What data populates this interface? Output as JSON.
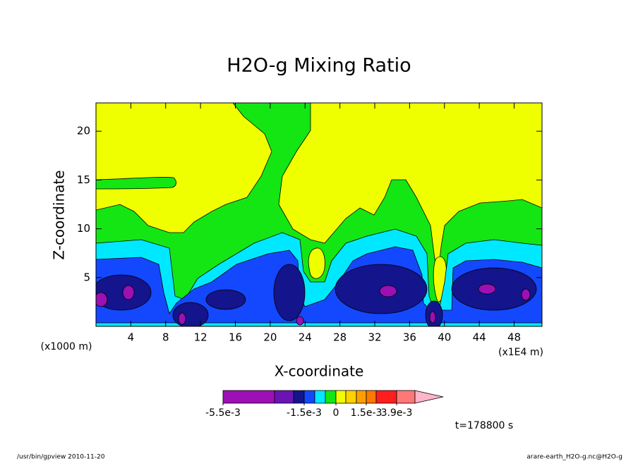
{
  "chart_data": {
    "type": "contour",
    "title": "H2O-g Mixing Ratio",
    "x_label": "X-coordinate",
    "y_label": "Z-coordinate",
    "x_unit": "(x1E4 m)",
    "y_unit": "(x1000 m)",
    "xlim": [
      0,
      51.2
    ],
    "ylim": [
      0,
      22.9
    ],
    "xticks": [
      4,
      8,
      12,
      16,
      20,
      24,
      28,
      32,
      36,
      40,
      44,
      48
    ],
    "yticks": [
      5,
      10,
      15,
      20
    ],
    "colorbar": {
      "colors": [
        "#9c10b4",
        "#6a14b4",
        "#14148c",
        "#1448ff",
        "#00e8ff",
        "#14e614",
        "#f0ff00",
        "#ffd200",
        "#ffa000",
        "#ff7800",
        "#ff1e1e",
        "#ff7878",
        "#ffb4c8"
      ],
      "ticks": [
        {
          "value": -0.0055,
          "label": "-5.5e-3"
        },
        {
          "value": -0.0015,
          "label": "-1.5e-3"
        },
        0,
        {
          "value": 0.0015,
          "label": "1.5e-3"
        },
        {
          "value": 0.0039,
          "label": "3.9e-3"
        }
      ]
    },
    "time_label": "t=178800 s",
    "footer_left": "/usr/bin/gpview  2010-11-20",
    "footer_right": "arare-earth_H2O-g.nc@H2O-g"
  }
}
